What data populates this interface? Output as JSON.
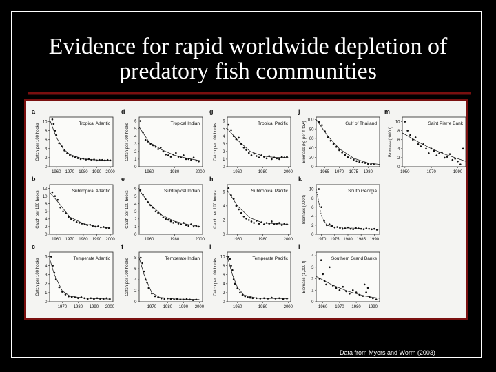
{
  "slide": {
    "title_line1": "Evidence for rapid worldwide depletion of",
    "title_line2": "predatory fish communities",
    "source": "Data from Myers and Worm (2003)"
  },
  "chart_data": [
    {
      "type": "scatter",
      "letter": "a",
      "region": "Tropical Atlantic",
      "ylabel": "Catch per 100 hooks",
      "yticks": [
        0,
        2,
        4,
        6,
        8,
        10
      ],
      "ylim": [
        0,
        11
      ],
      "xticks": [
        "1960",
        "1970",
        "1980",
        "1990",
        "2000"
      ],
      "xlim": [
        1955,
        2002
      ],
      "x": [
        1957,
        1958,
        1959,
        1960,
        1962,
        1964,
        1966,
        1968,
        1970,
        1972,
        1974,
        1976,
        1978,
        1980,
        1982,
        1984,
        1986,
        1988,
        1990,
        1992,
        1994,
        1996,
        1998,
        2000
      ],
      "y": [
        10.5,
        9.5,
        8.0,
        7.0,
        5.2,
        4.5,
        3.6,
        3.0,
        2.6,
        2.3,
        2.1,
        1.9,
        1.7,
        1.8,
        1.6,
        1.7,
        1.5,
        1.6,
        1.4,
        1.5,
        1.5,
        1.4,
        1.5,
        1.4
      ],
      "fit": [
        [
          1955,
          10.5
        ],
        [
          1960,
          6.5
        ],
        [
          1965,
          4.0
        ],
        [
          1970,
          2.7
        ],
        [
          1980,
          1.7
        ],
        [
          1990,
          1.5
        ],
        [
          2000,
          1.4
        ]
      ]
    },
    {
      "type": "scatter",
      "letter": "d",
      "region": "Tropical Indian",
      "ylabel": "Catch per 100 hooks",
      "yticks": [
        0,
        1,
        2,
        3,
        4,
        5,
        6
      ],
      "ylim": [
        0,
        6.5
      ],
      "xticks": [
        "1960",
        "1980",
        "2000"
      ],
      "xlim": [
        1952,
        2002
      ],
      "x": [
        1953,
        1955,
        1957,
        1959,
        1961,
        1963,
        1965,
        1967,
        1969,
        1971,
        1973,
        1975,
        1977,
        1979,
        1981,
        1983,
        1985,
        1987,
        1989,
        1991,
        1993,
        1995,
        1997,
        1999
      ],
      "y": [
        6.0,
        4.5,
        3.5,
        3.3,
        3.0,
        2.8,
        2.6,
        2.3,
        2.5,
        2.0,
        1.6,
        1.5,
        1.3,
        1.6,
        1.8,
        1.3,
        1.2,
        1.5,
        1.0,
        1.0,
        0.9,
        1.2,
        0.8,
        0.7
      ],
      "fit": [
        [
          1952,
          5.2
        ],
        [
          1960,
          3.2
        ],
        [
          1970,
          2.2
        ],
        [
          1980,
          1.5
        ],
        [
          1990,
          1.1
        ],
        [
          2000,
          0.8
        ]
      ]
    },
    {
      "type": "scatter",
      "letter": "g",
      "region": "Tropical Pacific",
      "ylabel": "Catch per 100 hooks",
      "yticks": [
        0,
        1,
        2,
        3,
        4,
        5,
        6
      ],
      "ylim": [
        0,
        6.5
      ],
      "xticks": [
        "1960",
        "1980",
        "2000"
      ],
      "xlim": [
        1952,
        2002
      ],
      "x": [
        1953,
        1955,
        1957,
        1959,
        1961,
        1963,
        1965,
        1967,
        1969,
        1971,
        1973,
        1975,
        1977,
        1979,
        1981,
        1983,
        1985,
        1987,
        1989,
        1991,
        1993,
        1995,
        1997,
        1999
      ],
      "y": [
        5.5,
        4.8,
        4.0,
        3.6,
        3.8,
        3.0,
        2.5,
        2.2,
        1.8,
        1.5,
        1.7,
        1.4,
        1.2,
        1.5,
        1.3,
        1.1,
        1.4,
        1.0,
        1.2,
        1.1,
        1.0,
        1.3,
        1.2,
        1.3
      ],
      "fit": [
        [
          1952,
          5.0
        ],
        [
          1960,
          3.5
        ],
        [
          1970,
          2.0
        ],
        [
          1980,
          1.4
        ],
        [
          1990,
          1.2
        ],
        [
          2000,
          1.2
        ]
      ]
    },
    {
      "type": "scatter",
      "letter": "j",
      "region": "Gulf of Thailand",
      "ylabel": "Biomass (kg per h tow)",
      "yticks": [
        0,
        20,
        40,
        60,
        80,
        100
      ],
      "ylim": [
        0,
        105
      ],
      "xticks": [
        "1965",
        "1970",
        "1975",
        "1980"
      ],
      "xlim": [
        1962,
        1984
      ],
      "x": [
        1963,
        1964,
        1965,
        1966,
        1967,
        1968,
        1969,
        1970,
        1971,
        1972,
        1973,
        1974,
        1975,
        1976,
        1977,
        1978,
        1979,
        1980,
        1981,
        1982
      ],
      "y": [
        95,
        88,
        75,
        62,
        55,
        48,
        42,
        35,
        30,
        25,
        20,
        18,
        15,
        12,
        10,
        9,
        8,
        6,
        5,
        5
      ],
      "fit": [
        [
          1962,
          100
        ],
        [
          1966,
          65
        ],
        [
          1970,
          38
        ],
        [
          1975,
          18
        ],
        [
          1980,
          8
        ],
        [
          1984,
          5
        ]
      ]
    },
    {
      "type": "scatter",
      "letter": "m",
      "region": "Saint Pierre Bank",
      "ylabel": "Biomass (*000 t)",
      "yticks": [
        0,
        2,
        4,
        6,
        8,
        10
      ],
      "ylim": [
        0,
        11
      ],
      "xticks": [
        "1950",
        "1970",
        "1990"
      ],
      "xlim": [
        1948,
        1996
      ],
      "x": [
        1950,
        1952,
        1954,
        1956,
        1958,
        1960,
        1962,
        1964,
        1966,
        1968,
        1970,
        1972,
        1974,
        1976,
        1978,
        1980,
        1982,
        1984,
        1986,
        1988,
        1990,
        1992,
        1994
      ],
      "y": [
        10,
        8,
        7,
        6,
        6.5,
        5,
        4.5,
        5,
        4,
        3,
        4,
        3.5,
        2.5,
        3,
        3.2,
        2,
        2.2,
        2.8,
        1.5,
        1.8,
        1.2,
        0.5,
        4
      ],
      "fit": [
        [
          1948,
          7.5
        ],
        [
          1960,
          5.5
        ],
        [
          1970,
          4.0
        ],
        [
          1980,
          2.8
        ],
        [
          1990,
          1.8
        ],
        [
          1996,
          1.2
        ]
      ]
    },
    {
      "type": "scatter",
      "letter": "b",
      "region": "Subtropical Atlantic",
      "ylabel": "Catch per 100 hooks",
      "yticks": [
        0,
        2,
        4,
        6,
        8,
        10,
        12
      ],
      "ylim": [
        0,
        13
      ],
      "xticks": [
        "1960",
        "1970",
        "1980",
        "1990",
        "2000"
      ],
      "xlim": [
        1955,
        2002
      ],
      "x": [
        1957,
        1959,
        1961,
        1963,
        1965,
        1967,
        1969,
        1971,
        1973,
        1975,
        1977,
        1979,
        1981,
        1983,
        1985,
        1987,
        1989,
        1991,
        1993,
        1995,
        1997,
        1999
      ],
      "y": [
        11,
        10,
        9,
        7,
        6,
        5.5,
        4.5,
        4,
        3.6,
        3.2,
        3,
        2.8,
        2.6,
        2.4,
        2.5,
        2.2,
        2,
        2.1,
        1.8,
        1.9,
        1.7,
        1.6
      ],
      "fit": [
        [
          1955,
          11
        ],
        [
          1960,
          9
        ],
        [
          1970,
          4.5
        ],
        [
          1980,
          2.8
        ],
        [
          1990,
          2.0
        ],
        [
          2000,
          1.6
        ]
      ]
    },
    {
      "type": "scatter",
      "letter": "e",
      "region": "Subtropical Indian",
      "ylabel": "Catch per 100 hooks",
      "yticks": [
        0,
        1,
        2,
        3,
        4,
        5,
        6
      ],
      "ylim": [
        0,
        6.5
      ],
      "xticks": [
        "1960",
        "1980",
        "2000"
      ],
      "xlim": [
        1952,
        2002
      ],
      "x": [
        1953,
        1955,
        1957,
        1959,
        1961,
        1963,
        1965,
        1967,
        1969,
        1971,
        1973,
        1975,
        1977,
        1979,
        1981,
        1983,
        1985,
        1987,
        1989,
        1991,
        1993,
        1995,
        1997,
        1999
      ],
      "y": [
        5.8,
        5.2,
        4.6,
        4.2,
        3.8,
        3.5,
        3.0,
        2.8,
        2.6,
        2.2,
        2.0,
        1.9,
        1.7,
        1.5,
        1.6,
        1.4,
        1.3,
        1.5,
        1.2,
        1.1,
        1.3,
        1.0,
        1.1,
        1.0
      ],
      "fit": [
        [
          1952,
          5.8
        ],
        [
          1960,
          4.0
        ],
        [
          1970,
          2.5
        ],
        [
          1980,
          1.7
        ],
        [
          1990,
          1.3
        ],
        [
          2000,
          1.0
        ]
      ]
    },
    {
      "type": "scatter",
      "letter": "h",
      "region": "Subtropical Pacific",
      "ylabel": "Catch per 100 hooks",
      "yticks": [
        0,
        2,
        4,
        6
      ],
      "ylim": [
        0,
        7
      ],
      "xticks": [
        "1960",
        "1980",
        "2000"
      ],
      "xlim": [
        1952,
        2002
      ],
      "x": [
        1953,
        1955,
        1957,
        1959,
        1961,
        1963,
        1965,
        1967,
        1969,
        1971,
        1973,
        1975,
        1977,
        1979,
        1981,
        1983,
        1985,
        1987,
        1989,
        1991,
        1993,
        1995,
        1997,
        1999
      ],
      "y": [
        6.5,
        5.5,
        5,
        4,
        3.5,
        3,
        2.5,
        2.2,
        2,
        1.8,
        1.6,
        1.9,
        1.5,
        1.7,
        1.4,
        1.6,
        1.5,
        1.8,
        1.4,
        1.5,
        1.6,
        1.3,
        1.5,
        1.4
      ],
      "fit": [
        [
          1952,
          6.2
        ],
        [
          1960,
          4.0
        ],
        [
          1970,
          2.3
        ],
        [
          1980,
          1.6
        ],
        [
          1990,
          1.5
        ],
        [
          2000,
          1.4
        ]
      ]
    },
    {
      "type": "scatter",
      "letter": "k",
      "region": "South Georgia",
      "ylabel": "Biomass (000 t)",
      "yticks": [
        0,
        2,
        4,
        6,
        8,
        10
      ],
      "ylim": [
        0,
        11
      ],
      "xticks": [
        "1970",
        "1975",
        "1980",
        "1985",
        "1990"
      ],
      "xlim": [
        1968,
        1992
      ],
      "x": [
        1969,
        1970,
        1971,
        1972,
        1973,
        1974,
        1975,
        1976,
        1977,
        1978,
        1979,
        1980,
        1981,
        1982,
        1983,
        1984,
        1985,
        1986,
        1987,
        1988,
        1989,
        1990,
        1991
      ],
      "y": [
        10,
        6,
        3,
        2,
        2.2,
        1.8,
        1.5,
        1.6,
        1.4,
        1.2,
        1.3,
        1.5,
        1.2,
        1.1,
        1.4,
        1.3,
        1.2,
        1.1,
        1.3,
        1.2,
        1.1,
        1.2,
        1.0
      ],
      "fit": [
        [
          1968,
          10
        ],
        [
          1970,
          4
        ],
        [
          1972,
          2
        ],
        [
          1976,
          1.5
        ],
        [
          1984,
          1.3
        ],
        [
          1992,
          1.1
        ]
      ]
    },
    {
      "type": "scatter",
      "letter": "c",
      "region": "Temperate Atlantic",
      "ylabel": "Catch per 100 hooks",
      "yticks": [
        0,
        1,
        2,
        3,
        4,
        5
      ],
      "ylim": [
        0,
        5.5
      ],
      "xticks": [
        "1970",
        "1980",
        "1990",
        "2000"
      ],
      "xlim": [
        1962,
        2002
      ],
      "x": [
        1963,
        1964,
        1965,
        1966,
        1968,
        1970,
        1972,
        1974,
        1976,
        1978,
        1980,
        1982,
        1984,
        1986,
        1988,
        1990,
        1992,
        1994,
        1996,
        1998,
        2000
      ],
      "y": [
        5.0,
        4.0,
        3.2,
        2.5,
        1.6,
        1.1,
        0.8,
        0.6,
        0.5,
        0.5,
        0.4,
        0.5,
        0.4,
        0.3,
        0.4,
        0.3,
        0.4,
        0.3,
        0.3,
        0.4,
        0.3
      ],
      "fit": [
        [
          1962,
          4.8
        ],
        [
          1965,
          3.0
        ],
        [
          1970,
          1.2
        ],
        [
          1975,
          0.6
        ],
        [
          1985,
          0.4
        ],
        [
          2000,
          0.3
        ]
      ]
    },
    {
      "type": "scatter",
      "letter": "f",
      "region": "Temperate Indian",
      "ylabel": "Catch per 100 hooks",
      "yticks": [
        0,
        2,
        4,
        6,
        8
      ],
      "ylim": [
        0,
        9
      ],
      "xticks": [
        "1970",
        "1980",
        "1990",
        "2000"
      ],
      "xlim": [
        1962,
        2002
      ],
      "x": [
        1963,
        1964,
        1965,
        1966,
        1967,
        1968,
        1970,
        1972,
        1974,
        1976,
        1978,
        1980,
        1982,
        1984,
        1986,
        1988,
        1990,
        1992,
        1994,
        1996,
        1998
      ],
      "y": [
        8.0,
        7.0,
        5.5,
        4.0,
        3.5,
        2.5,
        1.5,
        1.0,
        0.8,
        0.6,
        0.5,
        0.6,
        0.5,
        0.4,
        0.5,
        0.4,
        0.4,
        0.5,
        0.4,
        0.3,
        0.4
      ],
      "fit": [
        [
          1962,
          8
        ],
        [
          1965,
          5
        ],
        [
          1970,
          1.6
        ],
        [
          1975,
          0.8
        ],
        [
          1985,
          0.5
        ],
        [
          2000,
          0.4
        ]
      ]
    },
    {
      "type": "scatter",
      "letter": "i",
      "region": "Temperate Pacific",
      "ylabel": "Catch per 100 hooks",
      "yticks": [
        0,
        2,
        4,
        6,
        8,
        10
      ],
      "ylim": [
        0,
        11
      ],
      "xticks": [
        "1960",
        "1980",
        "2000"
      ],
      "xlim": [
        1952,
        2002
      ],
      "x": [
        1953,
        1954,
        1955,
        1956,
        1957,
        1958,
        1960,
        1962,
        1964,
        1966,
        1968,
        1970,
        1972,
        1975,
        1978,
        1981,
        1984,
        1987,
        1990,
        1993,
        1996,
        1999
      ],
      "y": [
        10,
        9.5,
        8,
        7,
        5,
        4,
        3,
        2,
        1.5,
        1.2,
        1.0,
        0.9,
        0.8,
        0.8,
        0.7,
        0.8,
        0.7,
        0.9,
        0.7,
        0.8,
        0.6,
        0.7
      ],
      "fit": [
        [
          1952,
          10
        ],
        [
          1956,
          6
        ],
        [
          1960,
          3.2
        ],
        [
          1965,
          1.5
        ],
        [
          1975,
          0.8
        ],
        [
          2000,
          0.7
        ]
      ]
    },
    {
      "type": "scatter",
      "letter": "l",
      "region": "Southern Grand Banks",
      "ylabel": "Biomass (1,000 t)",
      "yticks": [
        0,
        1,
        2,
        3,
        4
      ],
      "ylim": [
        0,
        4.3
      ],
      "xticks": [
        "1960",
        "1970",
        "1980",
        "1990"
      ],
      "xlim": [
        1956,
        1994
      ],
      "x": [
        1958,
        1959,
        1960,
        1961,
        1962,
        1964,
        1966,
        1968,
        1970,
        1972,
        1974,
        1976,
        1978,
        1980,
        1982,
        1984,
        1985,
        1986,
        1987,
        1988,
        1990,
        1992
      ],
      "y": [
        2.0,
        3.6,
        2.4,
        1.8,
        1.5,
        3.0,
        1.4,
        1.2,
        1.0,
        1.3,
        0.9,
        0.7,
        1.0,
        0.8,
        0.6,
        0.5,
        1.5,
        0.8,
        1.2,
        0.4,
        0.3,
        0.2
      ],
      "fit": [
        [
          1956,
          2.2
        ],
        [
          1965,
          1.5
        ],
        [
          1975,
          0.9
        ],
        [
          1985,
          0.5
        ],
        [
          1994,
          0.3
        ]
      ]
    }
  ]
}
